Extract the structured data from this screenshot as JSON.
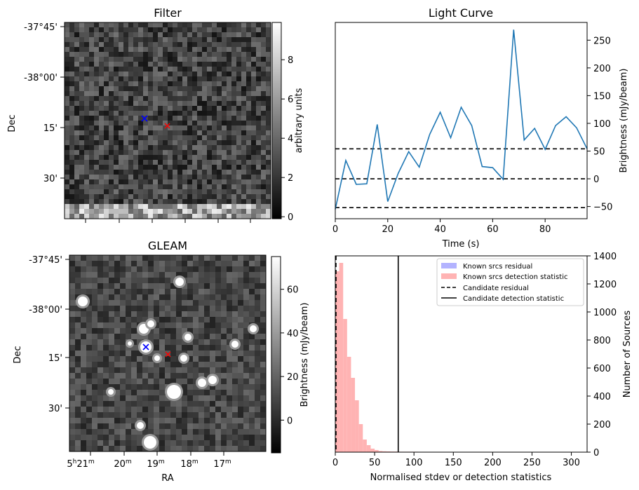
{
  "filter_panel": {
    "title": "Filter",
    "ylabel": "Dec",
    "y_ticks": [
      "-37°45'",
      "-38°00'",
      "15'",
      "30'"
    ],
    "colorbar_label": "arbitrary units",
    "colorbar_ticks": [
      "0",
      "2",
      "4",
      "6",
      "8"
    ],
    "colorbar_range": [
      -0.1,
      9.9
    ]
  },
  "gleam_panel": {
    "title": "GLEAM",
    "ylabel": "Dec",
    "xlabel": "RA",
    "y_ticks": [
      "-37°45'",
      "-38°00'",
      "15'",
      "30'"
    ],
    "colorbar_label": "Brightness (mJy/beam)",
    "colorbar_ticks": [
      "0",
      "20",
      "40",
      "60"
    ],
    "colorbar_range": [
      -15,
      75
    ]
  },
  "markers": {
    "blue": "#0000ff",
    "red": "#ff0000"
  },
  "chart_data": [
    {
      "type": "line",
      "title": "Light Curve",
      "xlabel": "Time (s)",
      "ylabel": "Brightness (mJy/beam)",
      "xlim": [
        0,
        96
      ],
      "ylim": [
        -72,
        282
      ],
      "x_ticks": [
        0,
        20,
        40,
        60,
        80
      ],
      "y_ticks": [
        -50,
        0,
        50,
        100,
        150,
        200,
        250
      ],
      "line_color": "#1f77b4",
      "x": [
        0,
        4,
        8,
        12,
        16,
        20,
        24,
        28,
        32,
        36,
        40,
        44,
        48,
        52,
        56,
        60,
        64,
        68,
        72,
        76,
        80,
        84,
        88,
        92,
        96
      ],
      "y": [
        -55,
        33,
        -10,
        -9,
        98,
        -41,
        10,
        49,
        21,
        80,
        120,
        74,
        129,
        96,
        22,
        20,
        -1,
        269,
        70,
        91,
        53,
        96,
        112,
        92,
        54
      ],
      "hlines": [
        54,
        0,
        -52
      ]
    },
    {
      "type": "bar",
      "xlabel": "Normalised stdev or detection statistics",
      "ylabel": "Number of Sources",
      "xlim": [
        0,
        320
      ],
      "ylim": [
        0,
        1400
      ],
      "x_ticks": [
        0,
        50,
        100,
        150,
        200,
        250,
        300
      ],
      "y_ticks": [
        0,
        200,
        400,
        600,
        800,
        1000,
        1200,
        1400
      ],
      "legend_position": "top-right",
      "bin_width": 5,
      "series": [
        {
          "name": "Known srcs residual",
          "color": "#b3b3ff",
          "values": []
        },
        {
          "name": "Known srcs detection statistic",
          "color": "#ffb3b3",
          "bin_starts": [
            0,
            5,
            10,
            15,
            20,
            25,
            30,
            35,
            40,
            45,
            50,
            55,
            60,
            65,
            70,
            75,
            80,
            85,
            90,
            95,
            100,
            105,
            110,
            115,
            120,
            125,
            130,
            135,
            140,
            145,
            150,
            155,
            160,
            165,
            170,
            175,
            180,
            185,
            190,
            195,
            200,
            205,
            210
          ],
          "values": [
            1290,
            1350,
            950,
            680,
            530,
            370,
            200,
            90,
            50,
            25,
            15,
            8,
            6,
            5,
            4,
            4,
            3,
            3,
            3,
            3,
            3,
            2,
            2,
            2,
            2,
            2,
            2,
            2,
            2,
            2,
            2,
            2,
            2,
            2,
            2,
            2,
            2,
            2,
            2,
            2,
            2,
            2,
            2
          ]
        },
        {
          "name": "Candidate residual",
          "value": 0
        },
        {
          "name": "Candidate detection statistic",
          "value": 80
        }
      ]
    }
  ]
}
